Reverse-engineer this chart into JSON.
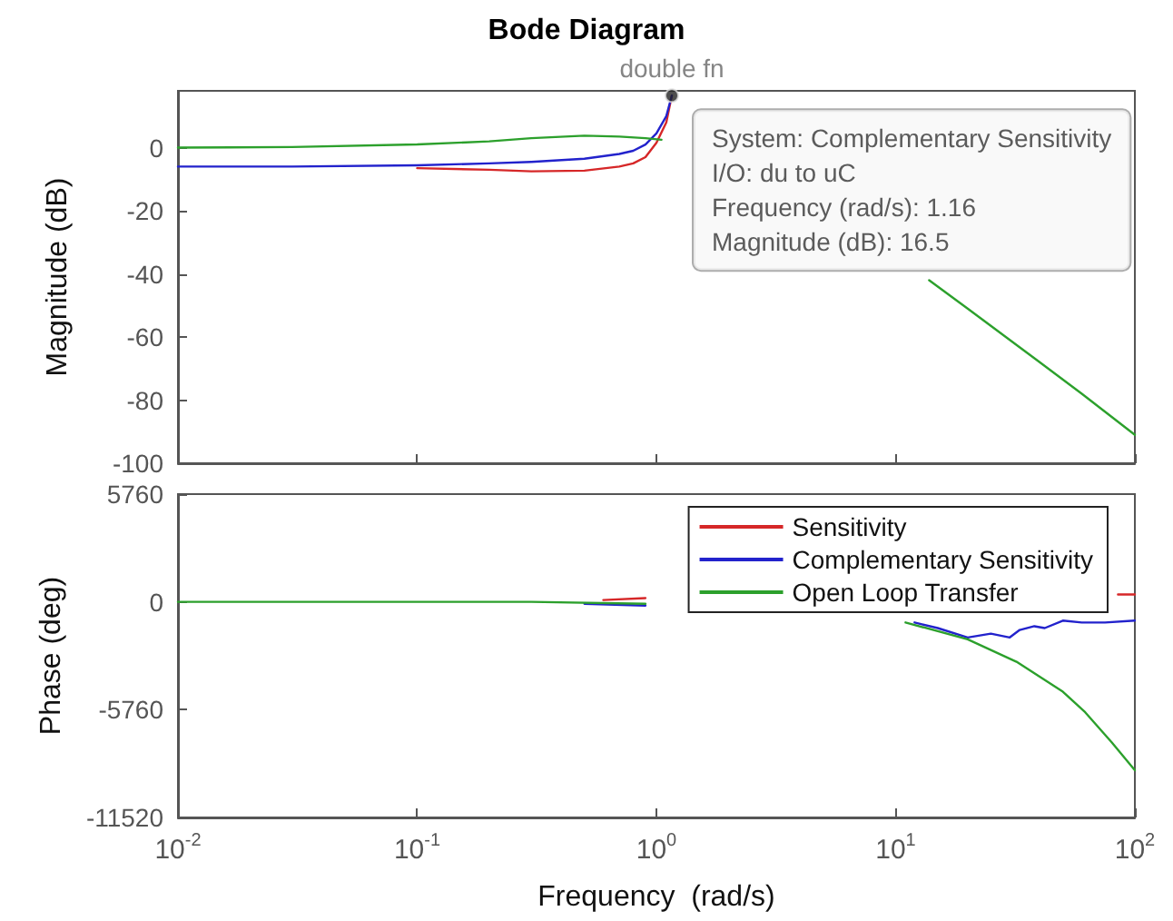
{
  "chart_data": [
    {
      "type": "line",
      "title": "Bode Diagram",
      "ylabel": "Magnitude (dB)",
      "log": "x",
      "grid": false,
      "legend": false,
      "tick_labels": "y",
      "marker": "none",
      "line_style": "solid",
      "xlim": [
        0.01,
        100
      ],
      "xticks": [
        {
          "value": 0.01,
          "label": null
        },
        {
          "value": 0.1,
          "label": null
        },
        {
          "value": 1,
          "label": null
        },
        {
          "value": 10,
          "label": null
        },
        {
          "value": 100,
          "label": null
        }
      ],
      "ylim": [
        -100,
        18
      ],
      "yticks": [
        -100,
        -80,
        -60,
        -40,
        -20,
        0
      ],
      "annotations": [
        {
          "text": "double fn",
          "x": 1.16,
          "y": 16.5
        },
        {
          "text": "System: Complementary Sensitivity\nI/O: du to uC\nFrequency (rad/s): 1.16\nMagnitude (dB): 16.5",
          "x": 1.16,
          "y": 16.5
        }
      ],
      "series": [
        {
          "color": "#d62728",
          "x": [
            0.1,
            0.2,
            0.3,
            0.5,
            0.7,
            0.8,
            0.9,
            1.0,
            1.1,
            1.16
          ],
          "values": [
            -6.5,
            -7,
            -7.5,
            -7.3,
            -6,
            -5,
            -3,
            1.5,
            8,
            16.5
          ]
        },
        {
          "color": "#2222cc",
          "x": [
            0.01,
            0.03,
            0.1,
            0.2,
            0.3,
            0.5,
            0.7,
            0.8,
            0.9,
            1.0,
            1.1,
            1.16
          ],
          "values": [
            -6,
            -6,
            -5.6,
            -5,
            -4.5,
            -3.5,
            -2,
            -1,
            1,
            4.5,
            10,
            16.5
          ]
        },
        {
          "color": "#2ca02c",
          "x": [
            0.01,
            0.03,
            0.1,
            0.2,
            0.3,
            0.5,
            0.7,
            0.9,
            1.05,
            1.2,
            13.8,
            20,
            40,
            60,
            100
          ],
          "values": [
            0,
            0.2,
            1,
            2,
            3,
            3.8,
            3.5,
            3,
            2.5,
            null,
            -42,
            -51,
            -68,
            -78,
            -91
          ]
        }
      ]
    },
    {
      "type": "line",
      "xlabel": "Frequency  (rad/s)",
      "ylabel": "Phase (deg)",
      "log": "x",
      "grid": false,
      "legend": "top right",
      "marker": "none",
      "line_style": "solid",
      "xlim": [
        0.01,
        100
      ],
      "xticks": [
        {
          "value": 0.01,
          "label": "10$^{-2}$"
        },
        {
          "value": 0.1,
          "label": "10$^{-1}$"
        },
        {
          "value": 1,
          "label": "10$^{0}$"
        },
        {
          "value": 10,
          "label": "10$^{1}$"
        },
        {
          "value": 100,
          "label": "10$^{2}$"
        }
      ],
      "ylim": [
        -11520,
        5760
      ],
      "yticks": [
        -11520,
        -5760,
        0,
        5760
      ],
      "series": [
        {
          "name": "Sensitivity",
          "color": "#d62728",
          "x": [
            0.6,
            0.9,
            1.05,
            85,
            100
          ],
          "values": [
            100,
            200,
            null,
            400,
            400
          ]
        },
        {
          "name": "Complementary Sensitivity",
          "color": "#2222cc",
          "x": [
            0.5,
            0.9,
            1.05,
            12,
            15,
            20,
            25,
            30,
            33,
            38,
            42,
            50,
            60,
            75,
            100
          ],
          "values": [
            -100,
            -200,
            null,
            -1100,
            -1400,
            -1900,
            -1700,
            -1900,
            -1500,
            -1300,
            -1400,
            -1000,
            -1100,
            -1100,
            -1000
          ]
        },
        {
          "name": "Open Loop Transfer",
          "color": "#2ca02c",
          "x": [
            0.01,
            0.1,
            0.3,
            0.9,
            1.05,
            11,
            20,
            32,
            50,
            62,
            80,
            100
          ],
          "values": [
            0,
            0,
            0,
            -100,
            null,
            -1100,
            -2000,
            -3200,
            -4800,
            -5900,
            -7500,
            -9000
          ]
        }
      ]
    }
  ]
}
